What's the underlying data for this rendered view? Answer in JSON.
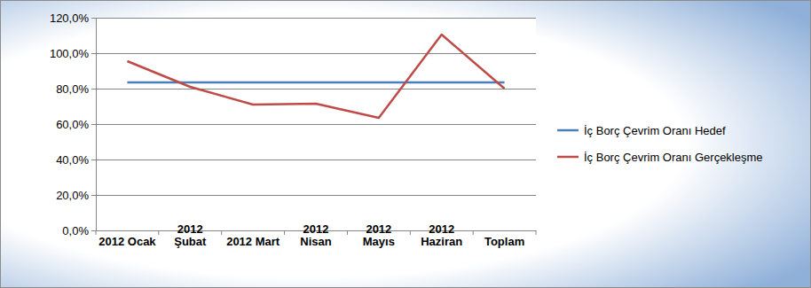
{
  "chart_data": {
    "type": "line",
    "categories": [
      "2012 Ocak",
      "2012 Şubat",
      "2012 Mart",
      "2012 Nisan",
      "2012 Mayıs",
      "2012 Haziran",
      "Toplam"
    ],
    "series": [
      {
        "name": "İç Borç Çevrim Oranı Hedef",
        "color": "#4a7ebb",
        "values": [
          83.5,
          83.5,
          83.5,
          83.5,
          83.5,
          83.5,
          83.5
        ]
      },
      {
        "name": "İç Borç Çevrim Oranı Gerçekleşme",
        "color": "#be4b48",
        "values": [
          95.5,
          81,
          71,
          71.5,
          63.5,
          110.5,
          80
        ]
      }
    ],
    "ylim": [
      0,
      120
    ],
    "yticks": [
      {
        "value": 0,
        "label": "0,0%"
      },
      {
        "value": 20,
        "label": "20,0%"
      },
      {
        "value": 40,
        "label": "40,0%"
      },
      {
        "value": 60,
        "label": "60,0%"
      },
      {
        "value": 80,
        "label": "80,0%"
      },
      {
        "value": 100,
        "label": "100,0%"
      },
      {
        "value": 120,
        "label": "120,0%"
      }
    ],
    "grid": true,
    "legend": "right"
  }
}
